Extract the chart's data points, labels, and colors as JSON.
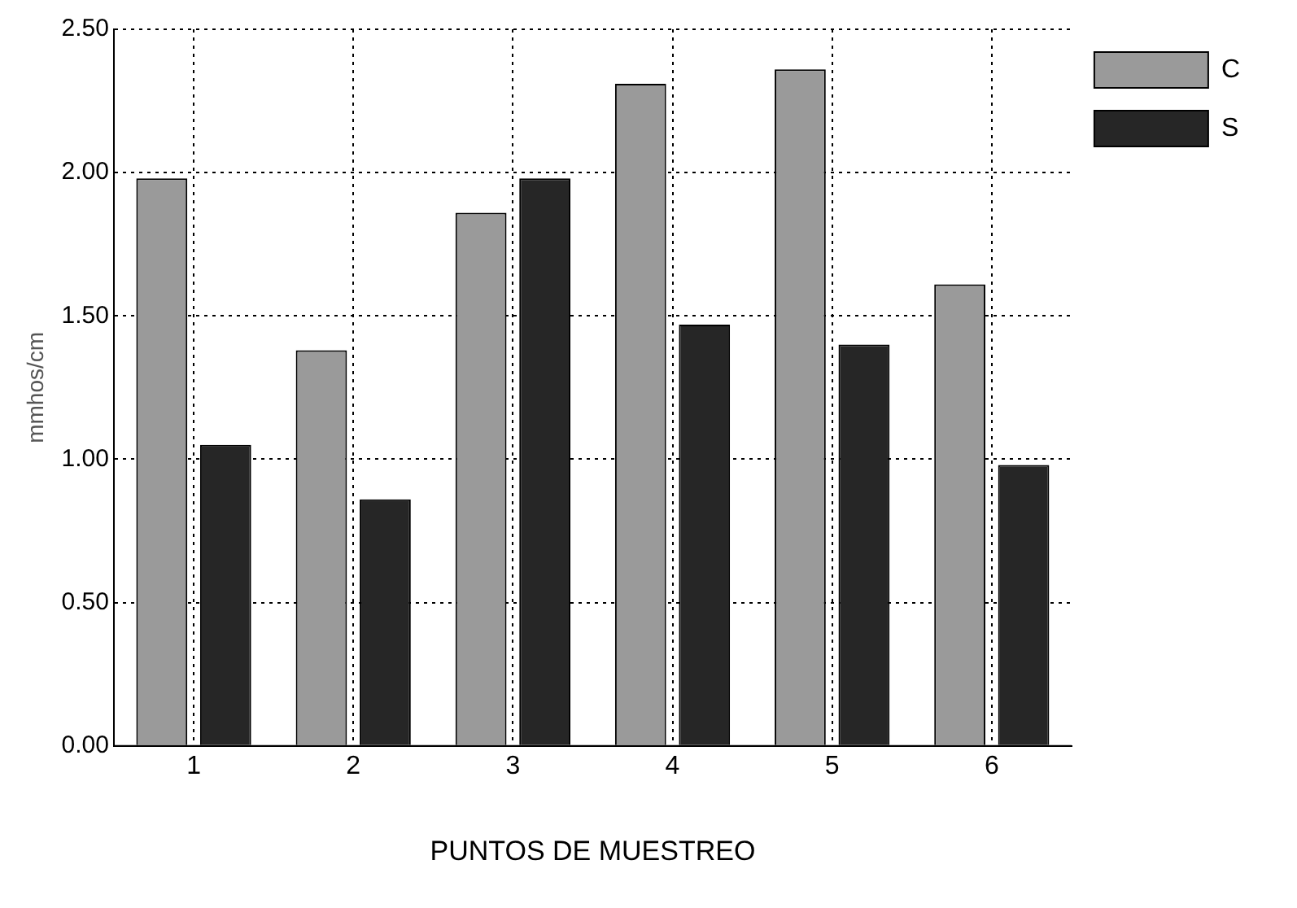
{
  "chart_data": {
    "type": "bar",
    "xlabel": "PUNTOS DE MUESTREO",
    "ylabel": "mmhos/cm",
    "categories": [
      "1",
      "2",
      "3",
      "4",
      "5",
      "6"
    ],
    "series": [
      {
        "name": "C",
        "color": "#9a9a9a",
        "values": [
          1.98,
          1.38,
          1.86,
          2.31,
          2.36,
          1.61
        ]
      },
      {
        "name": "S",
        "color": "#262626",
        "values": [
          1.05,
          0.86,
          1.98,
          1.47,
          1.4,
          0.98
        ]
      }
    ],
    "ylim": [
      0,
      2.5
    ],
    "yticks": [
      {
        "value": 0,
        "label": "0.00"
      },
      {
        "value": 0.5,
        "label": "0.50"
      },
      {
        "value": 1,
        "label": "1.00"
      },
      {
        "value": 1.5,
        "label": "1.50"
      },
      {
        "value": 2,
        "label": "2.00"
      },
      {
        "value": 2.5,
        "label": "2.50"
      }
    ],
    "grid": true,
    "line_style": "dotted",
    "legend": "top right"
  }
}
